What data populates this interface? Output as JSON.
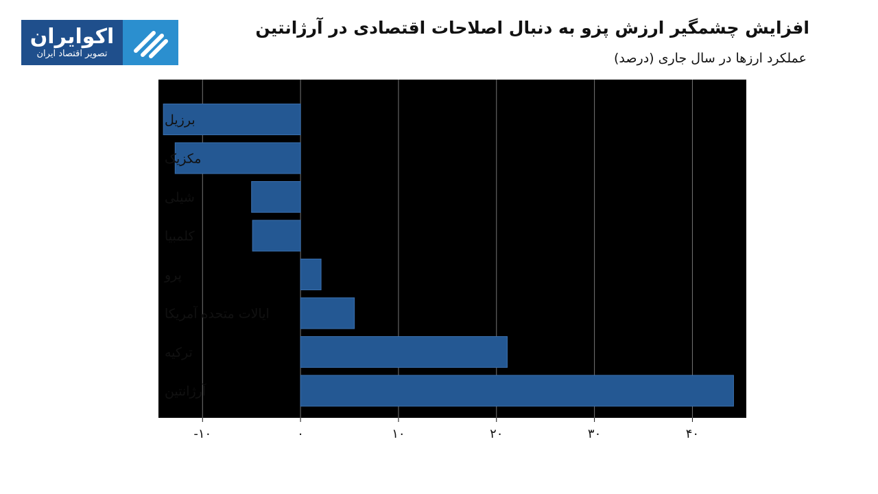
{
  "logo": {
    "name": "اکوایران",
    "tagline": "تصویر اقتصاد ایران"
  },
  "header": {
    "title": "افزایش چشمگیر ارزش پزو به دنبال اصلاحات اقتصادی در آرژانتین",
    "subtitle": "عملکرد ارزها در سال جاری (درصد)"
  },
  "colors": {
    "bar": "#245893",
    "plot_background": "#000000",
    "grid": "#777777",
    "logo_dark": "#1f4f8c",
    "logo_light": "#2b8fcf"
  },
  "chart_data": {
    "type": "bar",
    "orientation": "horizontal",
    "title": "افزایش چشمگیر ارزش پزو به دنبال اصلاحات اقتصادی در آرژانتین",
    "subtitle": "عملکرد ارزها در سال جاری (درصد)",
    "categories": [
      "برزیل",
      "مکزیک",
      "شیلی",
      "کلمبیا",
      "پرو",
      "ایالات متحده آمریکا",
      "ترکیه",
      "آرژانتین"
    ],
    "values": [
      -14,
      -12.8,
      -5,
      -4.9,
      2.1,
      5.5,
      21.1,
      44.2
    ],
    "xlim": [
      -14.5,
      45.5
    ],
    "xticks": [
      -10,
      0,
      10,
      20,
      30,
      40
    ],
    "xtick_labels": [
      "-۱۰",
      "۰",
      "۱۰",
      "۲۰",
      "۳۰",
      "۴۰"
    ],
    "grid": true,
    "legend": "none"
  }
}
